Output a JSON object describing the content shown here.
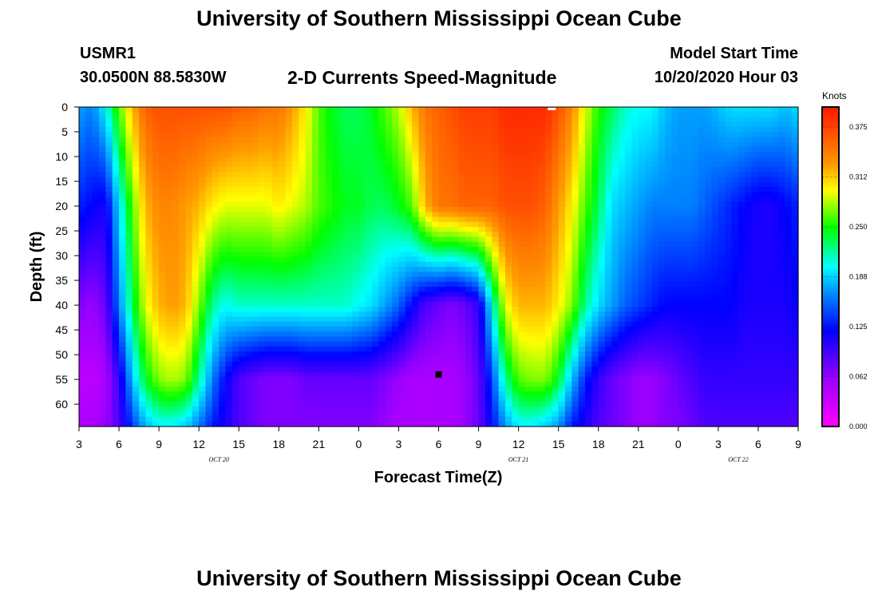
{
  "title_top": "University of Southern Mississippi Ocean Cube",
  "title_bottom": "University of Southern Mississippi Ocean Cube",
  "station": {
    "id": "USMR1",
    "coords": "30.0500N 88.5830W"
  },
  "model_start": {
    "label": "Model Start Time",
    "value": "10/20/2020 Hour 03"
  },
  "chart_data": {
    "type": "heatmap",
    "title": "2-D Currents Speed-Magnitude",
    "xlabel": "Forecast Time(Z)",
    "ylabel": "Depth (ft)",
    "x_tick_labels": [
      "3",
      "6",
      "9",
      "12",
      "15",
      "18",
      "21",
      "0",
      "3",
      "6",
      "9",
      "12",
      "15",
      "18",
      "21",
      "0",
      "3",
      "6",
      "9"
    ],
    "x_range_hours": [
      0,
      54
    ],
    "date_labels": [
      {
        "text": "OCT 20",
        "hour": 10.5
      },
      {
        "text": "OCT 21",
        "hour": 33
      },
      {
        "text": "OCT 22",
        "hour": 49.5
      }
    ],
    "y_ticks": [
      0,
      5,
      10,
      15,
      20,
      25,
      30,
      35,
      40,
      45,
      50,
      55,
      60
    ],
    "y_range_ft": [
      0,
      64.5
    ],
    "colorbar": {
      "unit": "Knots",
      "min": 0.0,
      "max": 0.4,
      "ticks": [
        "0.000",
        "0.062",
        "0.125",
        "0.188",
        "0.250",
        "0.312",
        "0.375"
      ],
      "tick_values": [
        0.0,
        0.0625,
        0.125,
        0.1875,
        0.25,
        0.3125,
        0.375
      ]
    },
    "approx_speed_knots": {
      "depths_ft": [
        0,
        20,
        40,
        55,
        64
      ],
      "hours": [
        0,
        1,
        2,
        3,
        4,
        5,
        6,
        7,
        8,
        9,
        10,
        11,
        12,
        13,
        14,
        15,
        16,
        17,
        18,
        19,
        20,
        21,
        22,
        23,
        24,
        25,
        26,
        27,
        28,
        29,
        30,
        31,
        32,
        33,
        34,
        35,
        36,
        37,
        38,
        39,
        40,
        41,
        42,
        43,
        44,
        45,
        46,
        47,
        48,
        49,
        50,
        51,
        52,
        53,
        54
      ],
      "rows": [
        [
          0.17,
          0.16,
          0.2,
          0.26,
          0.32,
          0.36,
          0.37,
          0.37,
          0.37,
          0.37,
          0.37,
          0.37,
          0.36,
          0.36,
          0.35,
          0.35,
          0.33,
          0.3,
          0.26,
          0.24,
          0.23,
          0.23,
          0.24,
          0.26,
          0.28,
          0.32,
          0.35,
          0.36,
          0.37,
          0.38,
          0.38,
          0.38,
          0.39,
          0.39,
          0.39,
          0.39,
          0.37,
          0.34,
          0.29,
          0.25,
          0.23,
          0.21,
          0.2,
          0.2,
          0.18,
          0.17,
          0.17,
          0.17,
          0.18,
          0.19,
          0.19,
          0.19,
          0.19,
          0.18,
          0.19
        ],
        [
          0.13,
          0.12,
          0.11,
          0.19,
          0.26,
          0.32,
          0.34,
          0.34,
          0.33,
          0.32,
          0.3,
          0.29,
          0.29,
          0.29,
          0.29,
          0.3,
          0.29,
          0.28,
          0.26,
          0.25,
          0.24,
          0.24,
          0.23,
          0.23,
          0.24,
          0.26,
          0.32,
          0.35,
          0.35,
          0.36,
          0.36,
          0.36,
          0.37,
          0.37,
          0.37,
          0.36,
          0.33,
          0.3,
          0.26,
          0.23,
          0.19,
          0.18,
          0.17,
          0.16,
          0.16,
          0.16,
          0.16,
          0.15,
          0.14,
          0.13,
          0.12,
          0.11,
          0.11,
          0.12,
          0.13
        ],
        [
          0.07,
          0.06,
          0.08,
          0.16,
          0.23,
          0.29,
          0.32,
          0.33,
          0.32,
          0.27,
          0.22,
          0.2,
          0.21,
          0.21,
          0.21,
          0.21,
          0.21,
          0.21,
          0.21,
          0.21,
          0.21,
          0.2,
          0.19,
          0.17,
          0.15,
          0.12,
          0.09,
          0.08,
          0.07,
          0.08,
          0.1,
          0.2,
          0.29,
          0.32,
          0.32,
          0.32,
          0.3,
          0.27,
          0.22,
          0.19,
          0.17,
          0.15,
          0.14,
          0.13,
          0.12,
          0.12,
          0.12,
          0.12,
          0.12,
          0.12,
          0.11,
          0.11,
          0.11,
          0.11,
          0.12
        ],
        [
          0.04,
          0.04,
          0.05,
          0.1,
          0.18,
          0.24,
          0.27,
          0.28,
          0.27,
          0.22,
          0.16,
          0.12,
          0.09,
          0.08,
          0.07,
          0.07,
          0.07,
          0.08,
          0.08,
          0.08,
          0.08,
          0.08,
          0.08,
          0.07,
          0.06,
          0.05,
          0.05,
          0.05,
          0.05,
          0.06,
          0.08,
          0.14,
          0.22,
          0.26,
          0.27,
          0.27,
          0.24,
          0.18,
          0.13,
          0.1,
          0.08,
          0.07,
          0.06,
          0.06,
          0.07,
          0.08,
          0.09,
          0.1,
          0.1,
          0.1,
          0.1,
          0.1,
          0.1,
          0.1,
          0.1
        ],
        [
          0.05,
          0.05,
          0.06,
          0.09,
          0.14,
          0.18,
          0.2,
          0.2,
          0.19,
          0.16,
          0.13,
          0.11,
          0.09,
          0.08,
          0.07,
          0.07,
          0.07,
          0.07,
          0.07,
          0.07,
          0.07,
          0.07,
          0.07,
          0.06,
          0.05,
          0.05,
          0.05,
          0.05,
          0.05,
          0.06,
          0.08,
          0.12,
          0.17,
          0.2,
          0.2,
          0.19,
          0.17,
          0.13,
          0.11,
          0.09,
          0.08,
          0.07,
          0.06,
          0.06,
          0.07,
          0.07,
          0.08,
          0.09,
          0.09,
          0.09,
          0.09,
          0.09,
          0.09,
          0.09,
          0.09
        ]
      ]
    },
    "markers": [
      {
        "shape": "square",
        "color": "#000000",
        "hour": 27,
        "depth_ft": 54
      },
      {
        "shape": "dash",
        "color": "#ffffff",
        "hour": 35.5,
        "depth_ft": 0.3
      }
    ]
  }
}
